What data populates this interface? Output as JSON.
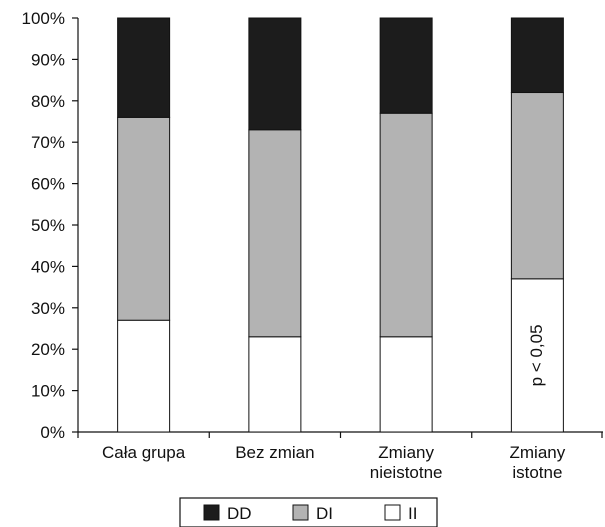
{
  "chart_data": {
    "type": "bar",
    "stacked": true,
    "percent": true,
    "categories": [
      [
        "Cała grupa"
      ],
      [
        "Bez zmian"
      ],
      [
        "Zmiany",
        "nieistotne"
      ],
      [
        "Zmiany",
        "istotne"
      ]
    ],
    "series": [
      {
        "name": "II",
        "values": [
          27,
          23,
          23,
          37
        ],
        "color": "#ffffff"
      },
      {
        "name": "DI",
        "values": [
          49,
          50,
          54,
          45
        ],
        "color": "#b3b3b3"
      },
      {
        "name": "DD",
        "values": [
          24,
          27,
          23,
          18
        ],
        "color": "#1c1c1c"
      }
    ],
    "legend_order": [
      "DD",
      "DI",
      "II"
    ],
    "y_ticks": [
      "0%",
      "10%",
      "20%",
      "30%",
      "40%",
      "50%",
      "60%",
      "70%",
      "80%",
      "90%",
      "100%"
    ],
    "ylim": [
      0,
      100
    ],
    "annotation": {
      "text": "p < 0,05",
      "category_index": 3
    },
    "legend_position": "bottom",
    "grid": false
  }
}
